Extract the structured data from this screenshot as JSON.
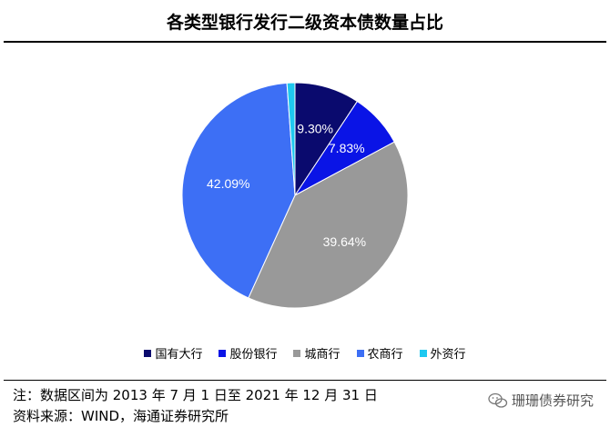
{
  "title": "各类型银行发行二级资本债数量占比",
  "chart_data": {
    "type": "pie",
    "start_angle_deg": 0,
    "slices": [
      {
        "name": "国有大行",
        "value": 9.3,
        "label": "9.30%",
        "color": "#0a0a6e"
      },
      {
        "name": "股份银行",
        "value": 7.83,
        "label": "7.83%",
        "color": "#0a14e6"
      },
      {
        "name": "城商行",
        "value": 39.64,
        "label": "39.64%",
        "color": "#999999"
      },
      {
        "name": "农商行",
        "value": 42.09,
        "label": "42.09%",
        "color": "#3d6ff5"
      },
      {
        "name": "外资行",
        "value": 1.14,
        "label": "",
        "color": "#1ec8f0"
      }
    ]
  },
  "notes": {
    "line1": "注：数据区间为 2013 年 7 月 1 日至 2021 年 12 月 31 日",
    "line2": "资料来源：WIND，海通证券研究所"
  },
  "watermark": {
    "text": "珊珊债券研究",
    "icon": "wechat-icon"
  }
}
